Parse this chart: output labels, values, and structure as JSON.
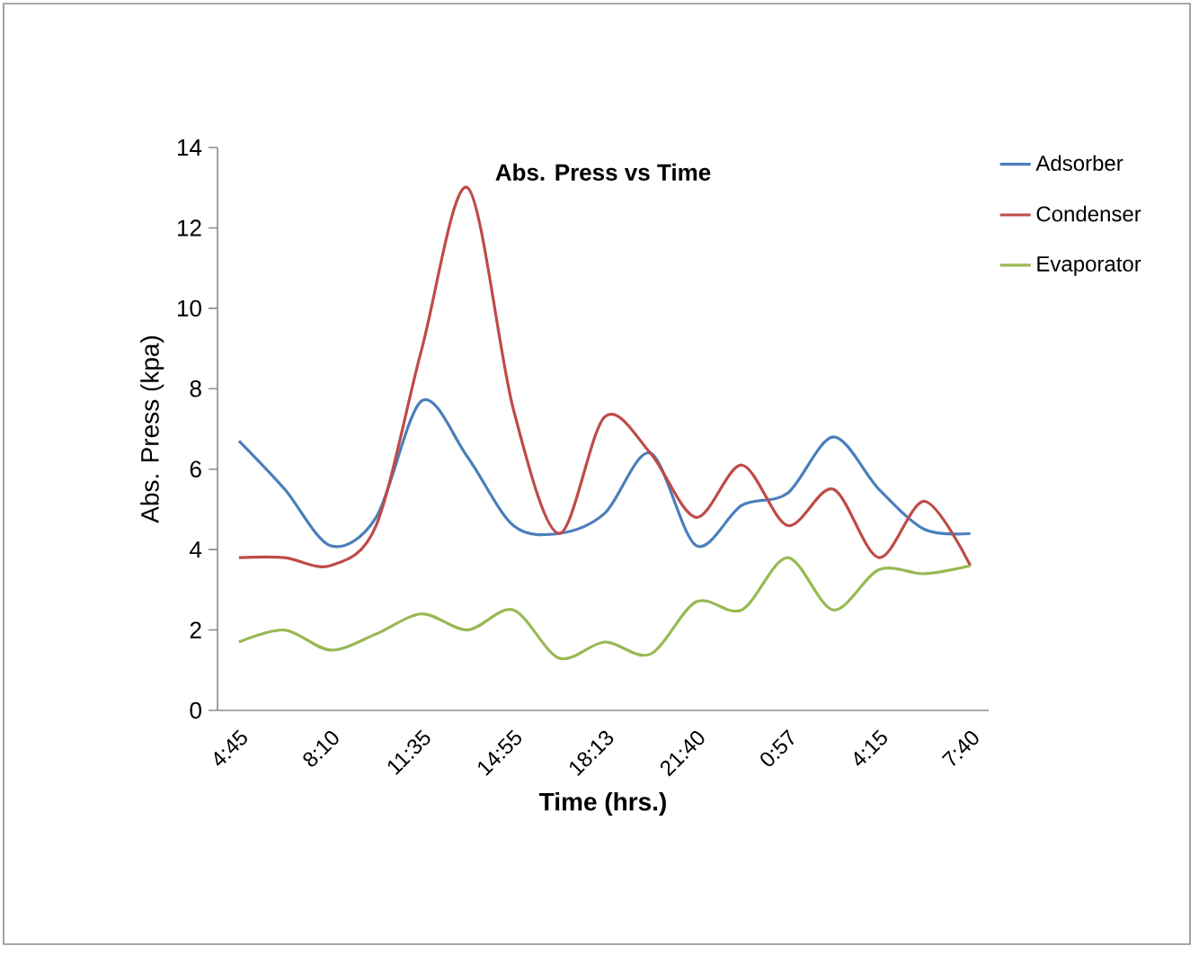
{
  "chart_data": {
    "type": "line",
    "title": "Abs. Press vs Time",
    "xlabel": "Time (hrs.)",
    "ylabel": "Abs. Press (kpa)",
    "categories": [
      "4:45",
      null,
      "8:10",
      null,
      "11:35",
      null,
      "14:55",
      null,
      "18:13",
      null,
      "21:40",
      null,
      "0:57",
      null,
      "4:15",
      null,
      "7:40"
    ],
    "series": [
      {
        "name": "Adsorber",
        "color": "#4a7ebb",
        "values": [
          6.7,
          5.5,
          4.1,
          4.8,
          7.7,
          6.3,
          4.6,
          4.4,
          4.9,
          6.4,
          4.1,
          5.1,
          5.4,
          6.8,
          5.5,
          4.5,
          4.4
        ]
      },
      {
        "name": "Condenser",
        "color": "#be4b48",
        "values": [
          3.8,
          3.8,
          3.6,
          4.6,
          9.0,
          13.0,
          7.5,
          4.4,
          7.3,
          6.4,
          4.8,
          6.1,
          4.6,
          5.5,
          3.8,
          5.2,
          3.6
        ]
      },
      {
        "name": "Evaporator",
        "color": "#98b954",
        "values": [
          1.7,
          2.0,
          1.5,
          1.9,
          2.4,
          2.0,
          2.5,
          1.3,
          1.7,
          1.4,
          2.7,
          2.5,
          3.8,
          2.5,
          3.5,
          3.4,
          3.6
        ]
      }
    ],
    "ylim": [
      0,
      14
    ],
    "yticks": [
      0,
      2,
      4,
      6,
      8,
      10,
      12,
      14
    ],
    "legend": "right"
  }
}
